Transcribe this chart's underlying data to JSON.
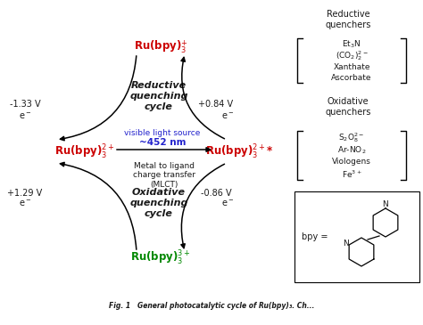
{
  "bg_color": "#ffffff",
  "red_color": "#cc0000",
  "green_color": "#008800",
  "blue_color": "#2222cc",
  "black_color": "#1a1a1a",
  "voltage_left_top": "-1.33 V",
  "voltage_right_top": "+0.84 V",
  "voltage_left_bot": "+1.29 V",
  "voltage_right_bot": "-0.86 V",
  "reductive_text": "Reductive\nquenching\ncycle",
  "oxidative_text": "Oxidative\nquenching\ncycle",
  "visible_light": "visible light source",
  "nm_text": "~452 nm",
  "mlct_text": "Metal to ligand\ncharge transfer\n(MLCT)",
  "rq_title": "Reductive\nquenchers",
  "oq_title": "Oxidative\nquenchers",
  "bpy_label": "bpy =",
  "caption": "Fig. 1   General photocatalytic cycle of Ru(bpy)₃. Ch..."
}
